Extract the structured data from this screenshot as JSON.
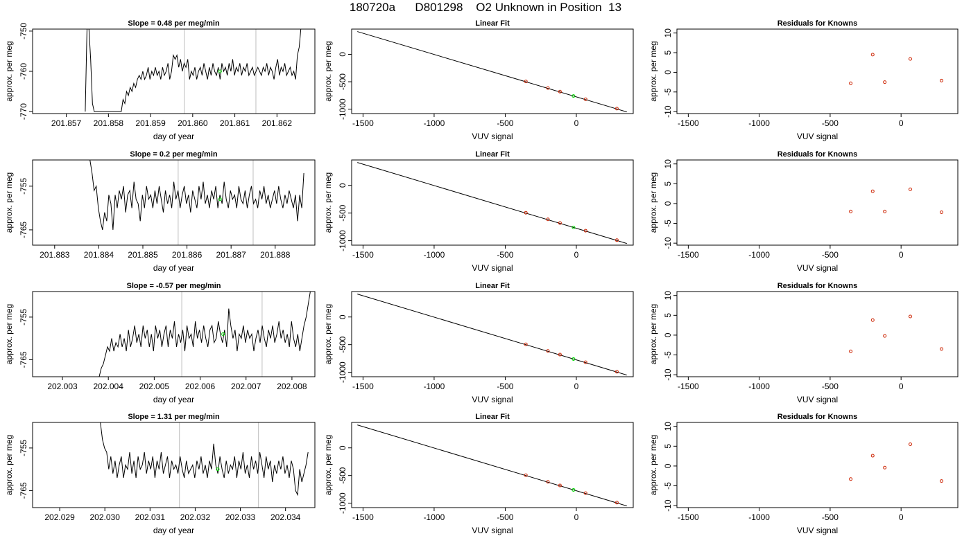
{
  "title": "180720a      D801298    O2 Unknown in Position  13",
  "colors": {
    "trace": "#000000",
    "marker_vline": "#c8c8c8",
    "unknown_point": "#00dd00",
    "known_point": "#cc2200"
  },
  "chart_data": [
    {
      "id": "r1-time",
      "type": "line",
      "title": "Slope =  0.48  per meg/min",
      "xlabel": "day of year",
      "ylabel": "approx. per meg",
      "xlim": [
        201.8562,
        201.8629
      ],
      "ylim": [
        -770.5,
        -749.5
      ],
      "xticks": [
        201.857,
        201.858,
        201.859,
        201.86,
        201.861,
        201.862
      ],
      "xtick_labels": [
        "201.857",
        "201.858",
        "201.859",
        "201.860",
        "201.861",
        "201.862"
      ],
      "yticks": [
        -770,
        -760,
        -750
      ],
      "ytick_labels": [
        "-770",
        "-760",
        "-750"
      ],
      "vlines": [
        201.8598,
        201.8615
      ],
      "trace_x0": 201.85745,
      "trace_x1": 201.86257,
      "trace_y": [
        -770,
        -749,
        -749,
        -757,
        -768,
        -770,
        -770,
        -770,
        -770,
        -770,
        -770,
        -770,
        -770,
        -770,
        -770,
        -770,
        -770,
        -770,
        -770,
        -770,
        -770,
        -767,
        -768,
        -765,
        -766,
        -764,
        -765,
        -763,
        -764,
        -762,
        -761,
        -762,
        -760,
        -762,
        -761,
        -759,
        -762,
        -760,
        -761,
        -759,
        -761,
        -760,
        -762,
        -759,
        -761,
        -760,
        -758,
        -762,
        -760,
        -756,
        -757,
        -756,
        -759,
        -757,
        -760,
        -758,
        -759,
        -757,
        -762,
        -760,
        -761,
        -759,
        -762,
        -760,
        -759,
        -761,
        -758,
        -760,
        -762,
        -759,
        -761,
        -758,
        -760,
        -761,
        -759,
        -762,
        -758,
        -760,
        -759,
        -761,
        -758,
        -760,
        -757,
        -761,
        -759,
        -760,
        -758,
        -761,
        -759,
        -760,
        -758,
        -761,
        -760,
        -759,
        -761,
        -760,
        -759,
        -760,
        -761,
        -759,
        -760,
        -758,
        -761,
        -759,
        -760,
        -762,
        -759,
        -757,
        -761,
        -759,
        -760,
        -758,
        -761,
        -760,
        -759,
        -761,
        -760,
        -762,
        -756,
        -754,
        -749
      ],
      "unknown_point": {
        "x": 201.86065,
        "y": -760
      }
    },
    {
      "id": "r1-fit",
      "type": "scatter",
      "title": "Linear Fit",
      "xlabel": "VUV signal",
      "ylabel": "approx. per meg",
      "xlim": [
        -1580,
        400
      ],
      "ylim": [
        -1080,
        460
      ],
      "xticks": [
        -1500,
        -1000,
        -500,
        0
      ],
      "xtick_labels": [
        "-1500",
        "-1000",
        "-500",
        "0"
      ],
      "yticks": [
        -1000,
        -500,
        0
      ],
      "ytick_labels": [
        "-1000",
        "-500",
        "0"
      ],
      "fit_line": {
        "x": [
          -1540,
          355
        ],
        "y": [
          415,
          -1050
        ]
      },
      "knowns": {
        "x": [
          -355,
          -200,
          -115,
          65,
          285
        ],
        "y": [
          -494,
          -614,
          -680,
          -819,
          -990
        ]
      },
      "unknown": {
        "x": -20,
        "y": -760
      }
    },
    {
      "id": "r1-resid",
      "type": "scatter",
      "title": "Residuals for Knowns",
      "xlabel": "VUV signal",
      "ylabel": "approx. per meg",
      "xlim": [
        -1580,
        400
      ],
      "ylim": [
        -10.5,
        11
      ],
      "xticks": [
        -1500,
        -1000,
        -500,
        0
      ],
      "xtick_labels": [
        "-1500",
        "-1000",
        "-500",
        "0"
      ],
      "yticks": [
        -10,
        -5,
        0,
        5,
        10
      ],
      "ytick_labels": [
        "-10",
        "-5",
        "0",
        "5",
        "10"
      ],
      "knowns": {
        "x": [
          -355,
          -200,
          -115,
          65,
          285
        ],
        "y": [
          -2.8,
          4.5,
          -2.5,
          3.4,
          -2.1
        ]
      }
    },
    {
      "id": "r2-time",
      "type": "line",
      "title": "Slope =  0.2  per meg/min",
      "xlabel": "day of year",
      "ylabel": "approx. per meg",
      "xlim": [
        201.8825,
        201.8889
      ],
      "ylim": [
        -768.5,
        -749
      ],
      "xticks": [
        201.883,
        201.884,
        201.885,
        201.886,
        201.887,
        201.888
      ],
      "xtick_labels": [
        "201.883",
        "201.884",
        "201.885",
        "201.886",
        "201.887",
        "201.888"
      ],
      "yticks": [
        -765,
        -755
      ],
      "ytick_labels": [
        "-765",
        "-755"
      ],
      "vlines": [
        201.8858,
        201.8875
      ],
      "trace_x0": 201.8838,
      "trace_x1": 201.88865,
      "trace_y": [
        -749,
        -752,
        -756,
        -755,
        -760,
        -763,
        -765,
        -761,
        -763,
        -757,
        -759,
        -765,
        -757,
        -760,
        -756,
        -758,
        -755,
        -761,
        -757,
        -756,
        -760,
        -754,
        -758,
        -759,
        -763,
        -757,
        -760,
        -755,
        -758,
        -757,
        -760,
        -756,
        -759,
        -755,
        -758,
        -761,
        -756,
        -759,
        -757,
        -760,
        -754,
        -758,
        -756,
        -760,
        -757,
        -755,
        -759,
        -757,
        -761,
        -756,
        -758,
        -760,
        -755,
        -758,
        -754,
        -759,
        -757,
        -760,
        -756,
        -758,
        -755,
        -760,
        -757,
        -759,
        -754,
        -758,
        -760,
        -756,
        -758,
        -757,
        -760,
        -755,
        -758,
        -759,
        -756,
        -760,
        -757,
        -755,
        -759,
        -758,
        -760,
        -756,
        -758,
        -755,
        -759,
        -757,
        -760,
        -758,
        -756,
        -759,
        -755,
        -758,
        -760,
        -757,
        -759,
        -756,
        -758,
        -760,
        -757,
        -763,
        -757,
        -760,
        -752
      ],
      "unknown_point": {
        "x": 201.88675,
        "y": -758
      }
    },
    {
      "id": "r2-fit",
      "type": "scatter",
      "title": "Linear Fit",
      "xlabel": "VUV signal",
      "ylabel": "approx. per meg",
      "xlim": [
        -1580,
        400
      ],
      "ylim": [
        -1080,
        460
      ],
      "xticks": [
        -1500,
        -1000,
        -500,
        0
      ],
      "xtick_labels": [
        "-1500",
        "-1000",
        "-500",
        "0"
      ],
      "yticks": [
        -1000,
        -500,
        0
      ],
      "ytick_labels": [
        "-1000",
        "-500",
        "0"
      ],
      "fit_line": {
        "x": [
          -1540,
          355
        ],
        "y": [
          415,
          -1050
        ]
      },
      "knowns": {
        "x": [
          -355,
          -200,
          -115,
          65,
          285
        ],
        "y": [
          -494,
          -614,
          -680,
          -819,
          -990
        ]
      },
      "unknown": {
        "x": -20,
        "y": -760
      }
    },
    {
      "id": "r2-resid",
      "type": "scatter",
      "title": "Residuals for Knowns",
      "xlabel": "VUV signal",
      "ylabel": "approx. per meg",
      "xlim": [
        -1580,
        400
      ],
      "ylim": [
        -10.5,
        11
      ],
      "xticks": [
        -1500,
        -1000,
        -500,
        0
      ],
      "xtick_labels": [
        "-1500",
        "-1000",
        "-500",
        "0"
      ],
      "yticks": [
        -10,
        -5,
        0,
        5,
        10
      ],
      "ytick_labels": [
        "-10",
        "-5",
        "0",
        "5",
        "10"
      ],
      "knowns": {
        "x": [
          -355,
          -200,
          -115,
          65,
          285
        ],
        "y": [
          -2.0,
          3.1,
          -2.0,
          3.6,
          -2.2
        ]
      }
    },
    {
      "id": "r3-time",
      "type": "line",
      "title": "Slope =  -0.57  per meg/min",
      "xlabel": "day of year",
      "ylabel": "approx. per meg",
      "xlim": [
        202.00235,
        202.0085
      ],
      "ylim": [
        -769,
        -749
      ],
      "xticks": [
        202.003,
        202.004,
        202.005,
        202.006,
        202.007,
        202.008
      ],
      "xtick_labels": [
        "202.003",
        "202.004",
        "202.005",
        "202.006",
        "202.007",
        "202.008"
      ],
      "yticks": [
        -765,
        -755
      ],
      "ytick_labels": [
        "-765",
        "-755"
      ],
      "vlines": [
        202.0056,
        202.00735
      ],
      "trace_x0": 202.0038,
      "trace_x1": 202.0084,
      "trace_y": [
        -769,
        -767,
        -766,
        -764,
        -762,
        -763,
        -760,
        -763,
        -761,
        -762,
        -759,
        -762,
        -760,
        -763,
        -758,
        -762,
        -760,
        -757,
        -761,
        -759,
        -762,
        -757,
        -760,
        -758,
        -762,
        -759,
        -763,
        -757,
        -760,
        -758,
        -762,
        -759,
        -757,
        -762,
        -758,
        -760,
        -756,
        -762,
        -759,
        -761,
        -758,
        -763,
        -757,
        -760,
        -759,
        -762,
        -756,
        -760,
        -758,
        -761,
        -757,
        -760,
        -762,
        -758,
        -757,
        -761,
        -760,
        -756,
        -759,
        -761,
        -758,
        -762,
        -753,
        -757,
        -760,
        -758,
        -763,
        -759,
        -760,
        -757,
        -761,
        -758,
        -760,
        -759,
        -763,
        -760,
        -758,
        -761,
        -757,
        -760,
        -762,
        -758,
        -760,
        -757,
        -761,
        -759,
        -756,
        -760,
        -758,
        -761,
        -759,
        -762,
        -756,
        -760,
        -762,
        -759,
        -763,
        -760,
        -757,
        -755,
        -752,
        -749
      ],
      "unknown_point": {
        "x": 202.0065,
        "y": -759
      }
    },
    {
      "id": "r3-fit",
      "type": "scatter",
      "title": "Linear Fit",
      "xlabel": "VUV signal",
      "ylabel": "approx. per meg",
      "xlim": [
        -1580,
        400
      ],
      "ylim": [
        -1080,
        460
      ],
      "xticks": [
        -1500,
        -1000,
        -500,
        0
      ],
      "xtick_labels": [
        "-1500",
        "-1000",
        "-500",
        "0"
      ],
      "yticks": [
        -1000,
        -500,
        0
      ],
      "ytick_labels": [
        "-1000",
        "-500",
        "0"
      ],
      "fit_line": {
        "x": [
          -1540,
          355
        ],
        "y": [
          415,
          -1050
        ]
      },
      "knowns": {
        "x": [
          -355,
          -200,
          -115,
          65,
          285
        ],
        "y": [
          -494,
          -614,
          -680,
          -819,
          -990
        ]
      },
      "unknown": {
        "x": -20,
        "y": -760
      }
    },
    {
      "id": "r3-resid",
      "type": "scatter",
      "title": "Residuals for Knowns",
      "xlabel": "VUV signal",
      "ylabel": "approx. per meg",
      "xlim": [
        -1580,
        400
      ],
      "ylim": [
        -10.5,
        11
      ],
      "xticks": [
        -1500,
        -1000,
        -500,
        0
      ],
      "xtick_labels": [
        "-1500",
        "-1000",
        "-500",
        "0"
      ],
      "yticks": [
        -10,
        -5,
        0,
        5,
        10
      ],
      "ytick_labels": [
        "-10",
        "-5",
        "0",
        "5",
        "10"
      ],
      "knowns": {
        "x": [
          -355,
          -200,
          -115,
          65,
          285
        ],
        "y": [
          -4.1,
          3.8,
          -0.2,
          4.7,
          -3.5
        ]
      }
    },
    {
      "id": "r4-time",
      "type": "line",
      "title": "Slope =  1.31  per meg/min",
      "xlabel": "day of year",
      "ylabel": "approx. per meg",
      "xlim": [
        202.0284,
        202.03465
      ],
      "ylim": [
        -769,
        -749
      ],
      "xticks": [
        202.029,
        202.03,
        202.031,
        202.032,
        202.033,
        202.034
      ],
      "xtick_labels": [
        "202.029",
        "202.030",
        "202.031",
        "202.032",
        "202.033",
        "202.034"
      ],
      "yticks": [
        -765,
        -755
      ],
      "ytick_labels": [
        "-765",
        "-755"
      ],
      "vlines": [
        202.03165,
        202.0334
      ],
      "trace_x0": 202.0299,
      "trace_x1": 202.0345,
      "trace_y": [
        -749,
        -753,
        -755,
        -756,
        -760,
        -757,
        -761,
        -758,
        -762,
        -759,
        -757,
        -762,
        -759,
        -760,
        -756,
        -761,
        -758,
        -762,
        -757,
        -760,
        -759,
        -756,
        -761,
        -758,
        -760,
        -757,
        -762,
        -758,
        -760,
        -756,
        -761,
        -759,
        -757,
        -762,
        -758,
        -760,
        -759,
        -761,
        -757,
        -760,
        -762,
        -758,
        -761,
        -760,
        -759,
        -762,
        -758,
        -760,
        -757,
        -761,
        -759,
        -762,
        -758,
        -760,
        -754,
        -759,
        -761,
        -757,
        -760,
        -762,
        -758,
        -761,
        -759,
        -760,
        -757,
        -762,
        -758,
        -760,
        -756,
        -761,
        -759,
        -762,
        -757,
        -760,
        -758,
        -761,
        -756,
        -759,
        -762,
        -757,
        -760,
        -758,
        -763,
        -759,
        -761,
        -758,
        -760,
        -757,
        -761,
        -759,
        -762,
        -758,
        -760,
        -765,
        -766,
        -760,
        -763,
        -761,
        -759,
        -756
      ],
      "unknown_point": {
        "x": 202.0325,
        "y": -760
      }
    },
    {
      "id": "r4-fit",
      "type": "scatter",
      "title": "Linear Fit",
      "xlabel": "VUV signal",
      "ylabel": "approx. per meg",
      "xlim": [
        -1580,
        400
      ],
      "ylim": [
        -1080,
        460
      ],
      "xticks": [
        -1500,
        -1000,
        -500,
        0
      ],
      "xtick_labels": [
        "-1500",
        "-1000",
        "-500",
        "0"
      ],
      "yticks": [
        -1000,
        -500,
        0
      ],
      "ytick_labels": [
        "-1000",
        "-500",
        "0"
      ],
      "fit_line": {
        "x": [
          -1540,
          355
        ],
        "y": [
          415,
          -1050
        ]
      },
      "knowns": {
        "x": [
          -355,
          -200,
          -115,
          65,
          285
        ],
        "y": [
          -494,
          -614,
          -680,
          -819,
          -990
        ]
      },
      "unknown": {
        "x": -20,
        "y": -760
      }
    },
    {
      "id": "r4-resid",
      "type": "scatter",
      "title": "Residuals for Knowns",
      "xlabel": "VUV signal",
      "ylabel": "approx. per meg",
      "xlim": [
        -1580,
        400
      ],
      "ylim": [
        -10.5,
        11
      ],
      "xticks": [
        -1500,
        -1000,
        -500,
        0
      ],
      "xtick_labels": [
        "-1500",
        "-1000",
        "-500",
        "0"
      ],
      "yticks": [
        -10,
        -5,
        0,
        5,
        10
      ],
      "ytick_labels": [
        "-10",
        "-5",
        "0",
        "5",
        "10"
      ],
      "knowns": {
        "x": [
          -355,
          -200,
          -115,
          65,
          285
        ],
        "y": [
          -3.3,
          2.6,
          -0.4,
          5.5,
          -3.8
        ]
      }
    }
  ]
}
